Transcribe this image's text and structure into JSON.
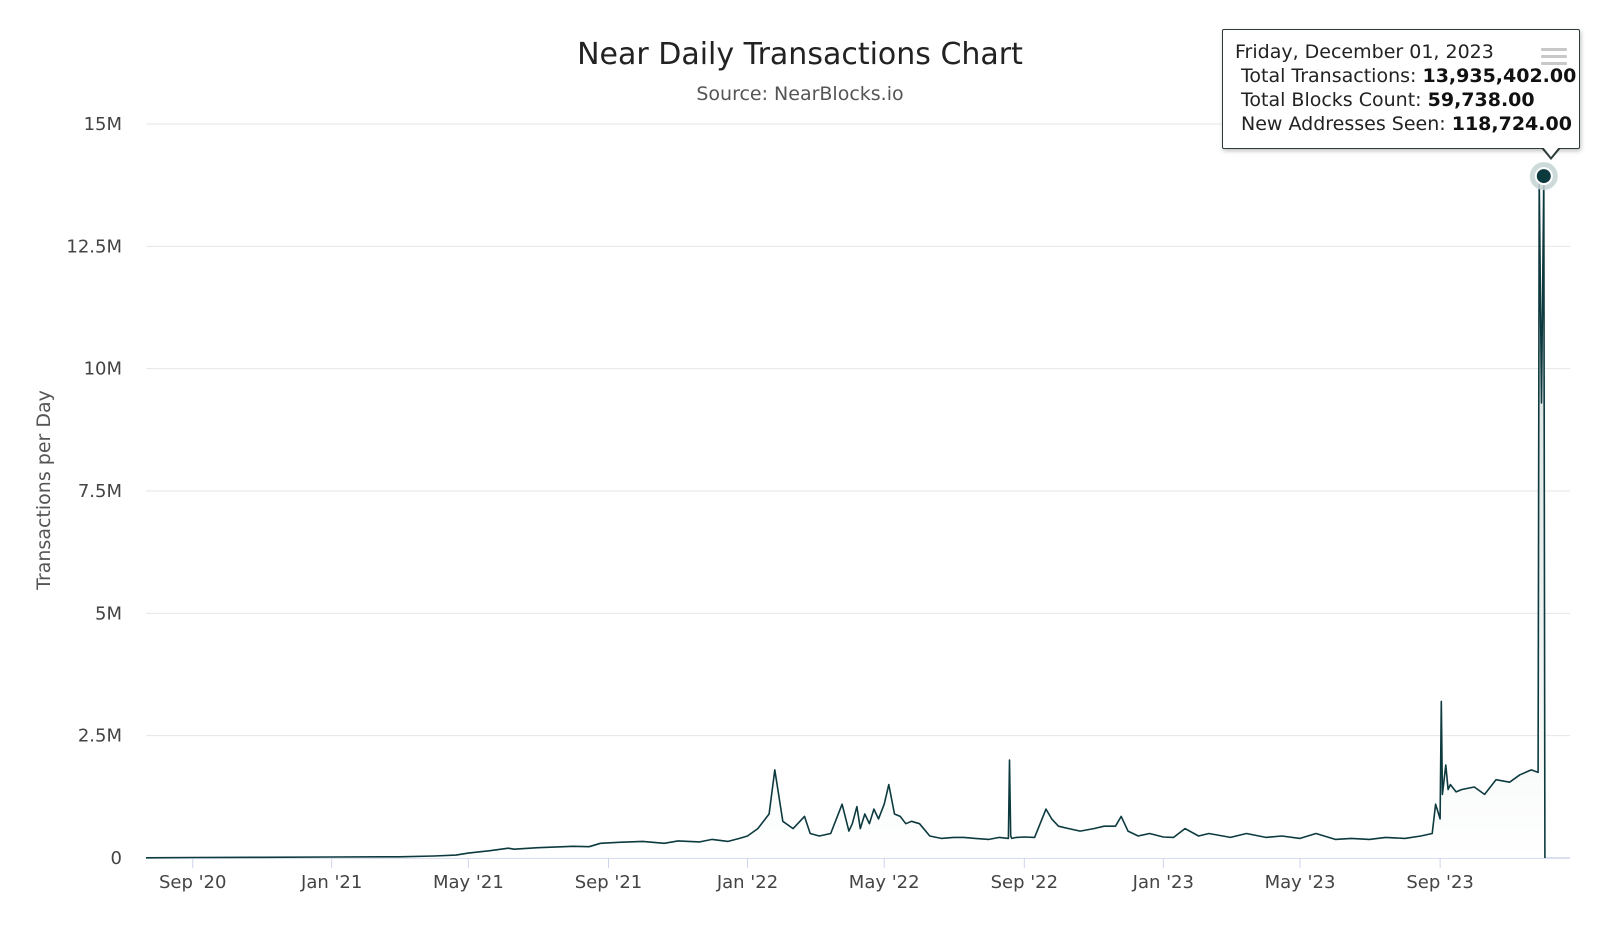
{
  "chart_data": {
    "type": "area",
    "title": "Near Daily Transactions Chart",
    "subtitle": "Source: NearBlocks.io",
    "ylabel": "Transactions per Day",
    "xlabel": "",
    "ylim": [
      0,
      15000000
    ],
    "xlim": [
      "2020-07-22",
      "2023-12-24"
    ],
    "yticks": [
      0,
      2500000,
      5000000,
      7500000,
      10000000,
      12500000,
      15000000
    ],
    "ytick_labels": [
      "0",
      "2.5M",
      "5M",
      "7.5M",
      "10M",
      "12.5M",
      "15M"
    ],
    "xticks": [
      "2020-09-01",
      "2021-01-01",
      "2021-05-01",
      "2021-09-01",
      "2022-01-01",
      "2022-05-01",
      "2022-09-01",
      "2023-01-01",
      "2023-05-01",
      "2023-09-01"
    ],
    "xtick_labels": [
      "Sep '20",
      "Jan '21",
      "May '21",
      "Sep '21",
      "Jan '22",
      "May '22",
      "Sep '22",
      "Jan '23",
      "May '23",
      "Sep '23"
    ],
    "grid": true,
    "legend": "none",
    "series": [
      {
        "color": "#0d3a3f",
        "x": [
          "2020-07-22",
          "2020-09-01",
          "2020-11-01",
          "2021-01-01",
          "2021-03-01",
          "2021-04-01",
          "2021-04-20",
          "2021-05-01",
          "2021-05-20",
          "2021-06-05",
          "2021-06-10",
          "2021-07-01",
          "2021-08-01",
          "2021-08-15",
          "2021-08-25",
          "2021-09-10",
          "2021-10-01",
          "2021-10-20",
          "2021-11-01",
          "2021-11-20",
          "2021-12-01",
          "2021-12-15",
          "2021-12-25",
          "2022-01-01",
          "2022-01-10",
          "2022-01-20",
          "2022-01-25",
          "2022-02-01",
          "2022-02-10",
          "2022-02-20",
          "2022-02-25",
          "2022-03-05",
          "2022-03-15",
          "2022-03-25",
          "2022-03-31",
          "2022-04-03",
          "2022-04-07",
          "2022-04-10",
          "2022-04-14",
          "2022-04-18",
          "2022-04-22",
          "2022-04-26",
          "2022-05-01",
          "2022-05-05",
          "2022-05-10",
          "2022-05-15",
          "2022-05-20",
          "2022-05-25",
          "2022-06-01",
          "2022-06-10",
          "2022-06-20",
          "2022-07-01",
          "2022-07-10",
          "2022-07-20",
          "2022-08-01",
          "2022-08-10",
          "2022-08-18",
          "2022-08-19",
          "2022-08-20",
          "2022-08-21",
          "2022-08-25",
          "2022-09-01",
          "2022-09-10",
          "2022-09-20",
          "2022-09-25",
          "2022-10-01",
          "2022-10-10",
          "2022-10-20",
          "2022-11-01",
          "2022-11-10",
          "2022-11-20",
          "2022-11-25",
          "2022-12-01",
          "2022-12-10",
          "2022-12-20",
          "2023-01-01",
          "2023-01-10",
          "2023-01-20",
          "2023-02-01",
          "2023-02-10",
          "2023-03-01",
          "2023-03-15",
          "2023-04-01",
          "2023-04-15",
          "2023-05-01",
          "2023-05-15",
          "2023-06-01",
          "2023-06-15",
          "2023-07-01",
          "2023-07-15",
          "2023-08-01",
          "2023-08-15",
          "2023-08-25",
          "2023-08-28",
          "2023-09-01",
          "2023-09-02",
          "2023-09-03",
          "2023-09-06",
          "2023-09-08",
          "2023-09-10",
          "2023-09-15",
          "2023-09-20",
          "2023-10-01",
          "2023-10-10",
          "2023-10-20",
          "2023-11-01",
          "2023-11-10",
          "2023-11-20",
          "2023-11-26",
          "2023-11-27",
          "2023-11-29",
          "2023-12-01",
          "2023-12-02"
        ],
        "y": [
          5000,
          10000,
          15000,
          20000,
          25000,
          40000,
          60000,
          100000,
          150000,
          200000,
          180000,
          210000,
          240000,
          230000,
          300000,
          320000,
          340000,
          300000,
          350000,
          330000,
          380000,
          340000,
          400000,
          450000,
          600000,
          900000,
          1800000,
          750000,
          600000,
          850000,
          500000,
          450000,
          500000,
          1100000,
          550000,
          700000,
          1050000,
          600000,
          900000,
          700000,
          1000000,
          800000,
          1100000,
          1500000,
          900000,
          850000,
          700000,
          750000,
          700000,
          450000,
          400000,
          420000,
          420000,
          400000,
          380000,
          420000,
          400000,
          2000000,
          450000,
          400000,
          420000,
          430000,
          420000,
          1000000,
          800000,
          650000,
          600000,
          550000,
          600000,
          650000,
          650000,
          850000,
          550000,
          450000,
          500000,
          430000,
          420000,
          600000,
          450000,
          500000,
          420000,
          500000,
          420000,
          450000,
          400000,
          500000,
          380000,
          400000,
          380000,
          420000,
          400000,
          450000,
          500000,
          1100000,
          800000,
          3200000,
          1300000,
          1900000,
          1400000,
          1500000,
          1350000,
          1400000,
          1450000,
          1300000,
          1600000,
          1550000,
          1700000,
          1800000,
          1750000,
          13935402,
          9300000,
          13935402,
          0
        ]
      }
    ],
    "highlight": {
      "x": "2023-12-01",
      "y": 13935402
    },
    "tooltip": {
      "date": "Friday, December 01, 2023",
      "rows": [
        {
          "label": "Total Transactions:",
          "value": "13,935,402.00"
        },
        {
          "label": "Total Blocks Count:",
          "value": "59,738.00"
        },
        {
          "label": "New Addresses Seen:",
          "value": "118,724.00"
        }
      ]
    }
  },
  "colors": {
    "line": "#0d3a3f",
    "area_top": "#d9e3e3",
    "grid": "#e6e6e6",
    "axis": "#ccd6eb"
  },
  "icons": {
    "menu": "hamburger-menu-icon"
  }
}
